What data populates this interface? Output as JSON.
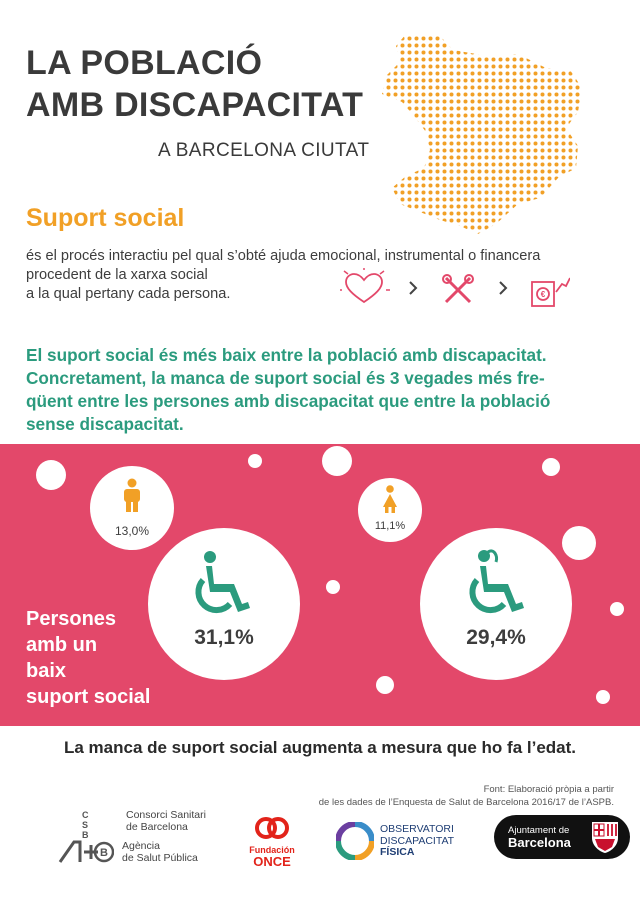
{
  "header": {
    "title_line1": "LA POBLACIÓ",
    "title_line2": "AMB DISCAPACITAT",
    "subtitle": "A BARCELONA CIUTAT"
  },
  "support": {
    "title": "Suport social",
    "definition_line1": "és el procés interactiu pel qual s’obté ajuda emocional, instrumental o financera",
    "definition_line2": "procedent de la xarxa social",
    "definition_line3": "a la qual pertany cada persona.",
    "icons": [
      "heart-icon",
      "tools-icon",
      "money-icon"
    ]
  },
  "headline": {
    "line1": "El suport social és més baix entre la població amb discapacitat.",
    "line2": "Concretament, la manca de suport social és 3 vegades més fre-",
    "line3": "qüent entre les persones amb discapacitat que entre la població",
    "line4": "sense discapacitat."
  },
  "stats": {
    "label_line1": "Persones",
    "label_line2": "amb un",
    "label_line3": "baix",
    "label_line4": "suport social",
    "men_without": "13,0%",
    "men_with": "31,1%",
    "women_without": "11,1%",
    "women_with": "29,4%",
    "colors": {
      "pink": "#e3486a",
      "teal": "#2b9b7e",
      "orange": "#f1a026"
    }
  },
  "conclusion": "La manca de suport social augmenta a mesura que ho fa l’edat.",
  "source": {
    "line1": "Font: Elaboració pròpia a partir",
    "line2": "de les dades de l’Enquesta de Salut de Barcelona 2016/17 de l’ASPB."
  },
  "logos": {
    "csb_letters": "C S B",
    "csb_line1": "Consorci Sanitari",
    "csb_line2": "de Barcelona",
    "aspb_line1": "Agència",
    "aspb_line2": "de Salut Pública",
    "once_line1": "Fundación",
    "once_line2": "ONCE",
    "obs_line1": "OBSERVATORI",
    "obs_line2": "DISCAPACITAT",
    "obs_line3": "FÍSICA",
    "ajuntament_line1": "Ajuntament de",
    "ajuntament_line2": "Barcelona"
  }
}
